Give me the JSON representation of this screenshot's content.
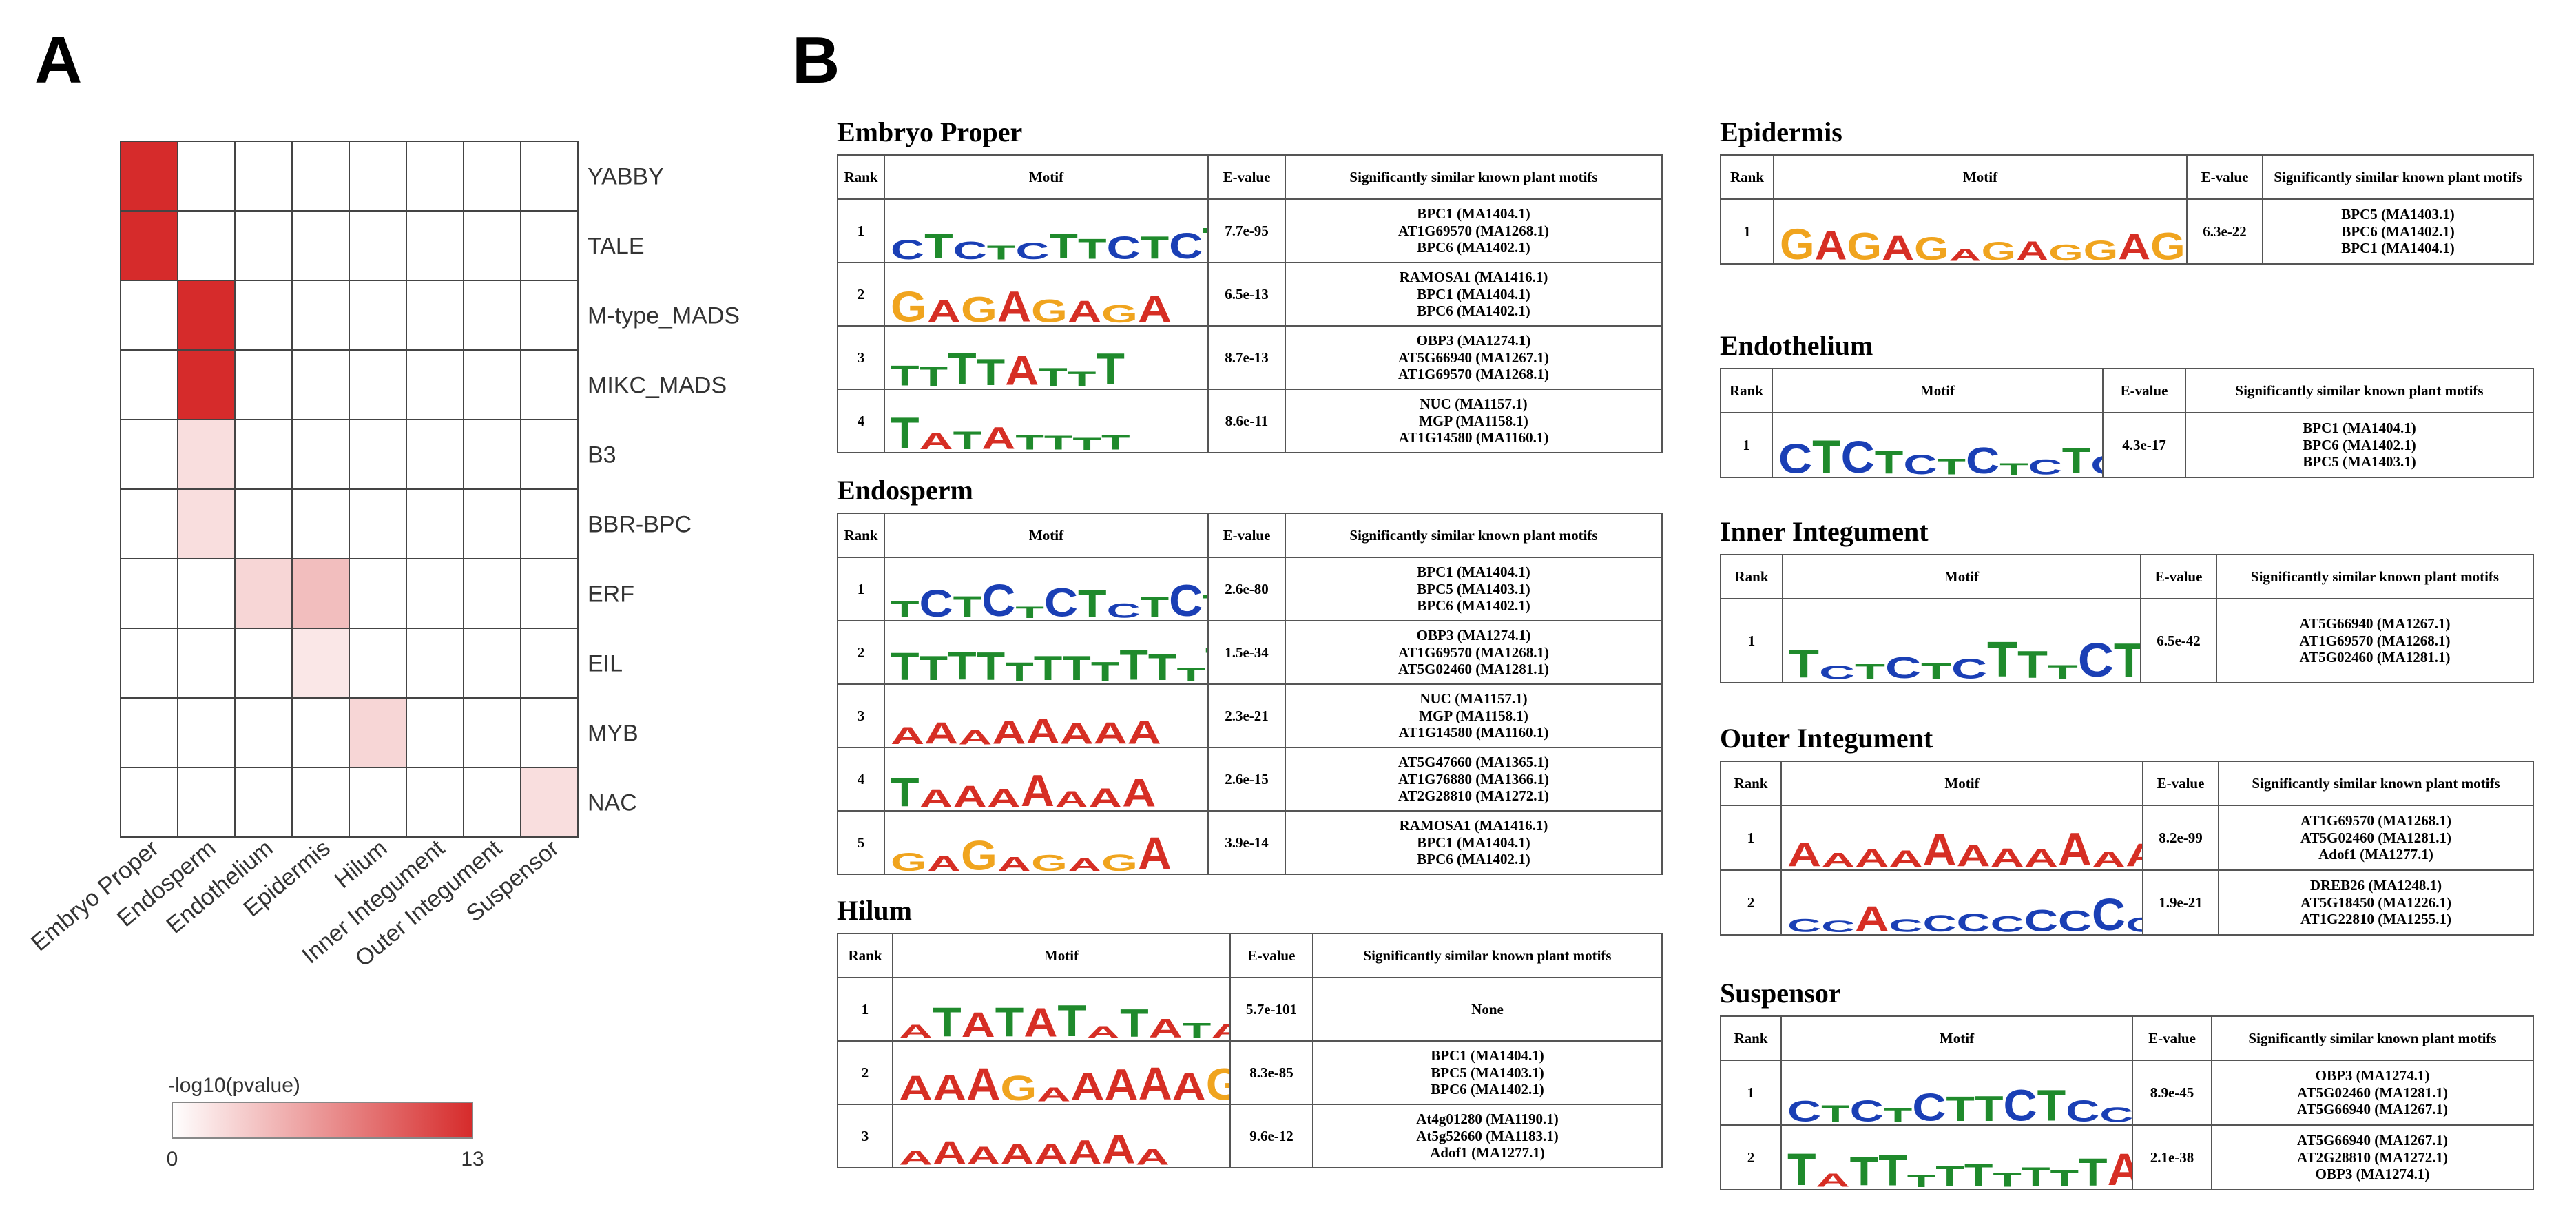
{
  "panels": {
    "a": "A",
    "b": "B"
  },
  "heatmap": {
    "rows": [
      "YABBY",
      "TALE",
      "M-type_MADS",
      "MIKC_MADS",
      "B3",
      "BBR-BPC",
      "ERF",
      "EIL",
      "MYB",
      "NAC"
    ],
    "cols": [
      "Embryo Proper",
      "Endosperm",
      "Endothelium",
      "Epidermis",
      "Hilum",
      "Inner Integument",
      "Outer Integument",
      "Suspensor"
    ],
    "values": [
      [
        13,
        0,
        0,
        0,
        0,
        0,
        0,
        0
      ],
      [
        13,
        0,
        0,
        0,
        0,
        0,
        0,
        0
      ],
      [
        0,
        13,
        0,
        0,
        0,
        0,
        0,
        0
      ],
      [
        0,
        13,
        0,
        0,
        0,
        0,
        0,
        0
      ],
      [
        0,
        2,
        0,
        0,
        0,
        0,
        0,
        0
      ],
      [
        0,
        2,
        0,
        0,
        0,
        0,
        0,
        0
      ],
      [
        0,
        0,
        2.5,
        4,
        0,
        0,
        0,
        0
      ],
      [
        0,
        0,
        0,
        1.5,
        0,
        0,
        0,
        0
      ],
      [
        0,
        0,
        0,
        0,
        2.5,
        0,
        0,
        0
      ],
      [
        0,
        0,
        0,
        0,
        0,
        0,
        0,
        2
      ]
    ],
    "legend": {
      "title": "-log10(pvalue)",
      "min": "0",
      "max": "13",
      "low_color": "#ffffff",
      "high_color": "#d62b2b"
    }
  },
  "table_headers": {
    "rank": "Rank",
    "motif": "Motif",
    "evalue": "E-value",
    "similar": "Significantly similar known  plant motifs"
  },
  "colors": {
    "A": "#d62e24",
    "C": "#1a3fb5",
    "G": "#f0a41e",
    "T": "#1f8a2c"
  },
  "sections": {
    "embryo": {
      "title": "Embryo Proper",
      "rows": [
        {
          "rank": "1",
          "logo": "CTCTCTTCTCTCTCCTCTCTC",
          "evalue": "7.7e-95",
          "similar": [
            "BPC1 (MA1404.1)",
            "AT1G69570 (MA1268.1)",
            "BPC6 (MA1402.1)"
          ]
        },
        {
          "rank": "2",
          "logo": "GAGAGAGA",
          "evalue": "6.5e-13",
          "similar": [
            "RAMOSA1 (MA1416.1)",
            "BPC1 (MA1404.1)",
            "BPC6 (MA1402.1)"
          ]
        },
        {
          "rank": "3",
          "logo": "TTTTATTT",
          "evalue": "8.7e-13",
          "similar": [
            "OBP3 (MA1274.1)",
            "AT5G66940 (MA1267.1)",
            "AT1G69570 (MA1268.1)"
          ]
        },
        {
          "rank": "4",
          "logo": "TATATTTT",
          "evalue": "8.6e-11",
          "similar": [
            "NUC (MA1157.1)",
            "MGP (MA1158.1)",
            "AT1G14580 (MA1160.1)"
          ]
        }
      ]
    },
    "endosperm": {
      "title": "Endosperm",
      "rows": [
        {
          "rank": "1",
          "logo": "TCTCTCTCTCTCCTCTCTC",
          "evalue": "2.6e-80",
          "similar": [
            "BPC1 (MA1404.1)",
            "BPC5 (MA1403.1)",
            "BPC6 (MA1402.1)"
          ]
        },
        {
          "rank": "2",
          "logo": "TTTTTTTTTTTTTTTTTT",
          "evalue": "1.5e-34",
          "similar": [
            "OBP3 (MA1274.1)",
            "AT1G69570 (MA1268.1)",
            "AT5G02460 (MA1281.1)"
          ]
        },
        {
          "rank": "3",
          "logo": "AAAAAAAA",
          "evalue": "2.3e-21",
          "similar": [
            "NUC (MA1157.1)",
            "MGP (MA1158.1)",
            "AT1G14580 (MA1160.1)"
          ]
        },
        {
          "rank": "4",
          "logo": "TAAAAAAA",
          "evalue": "2.6e-15",
          "similar": [
            "AT5G47660 (MA1365.1)",
            "AT1G76880 (MA1366.1)",
            "AT2G28810 (MA1272.1)"
          ]
        },
        {
          "rank": "5",
          "logo": "GAGAGAGA",
          "evalue": "3.9e-14",
          "similar": [
            "RAMOSA1 (MA1416.1)",
            "BPC1 (MA1404.1)",
            "BPC6 (MA1402.1)"
          ]
        }
      ]
    },
    "hilum": {
      "title": "Hilum",
      "rows": [
        {
          "rank": "1",
          "logo": "ATATATATATATATATATATATATATAT",
          "evalue": "5.7e-101",
          "similar": [
            "None"
          ]
        },
        {
          "rank": "2",
          "logo": "AAAGAAAAAGAGAGAGAAGAGA",
          "evalue": "8.3e-85",
          "similar": [
            "BPC1 (MA1404.1)",
            "BPC5 (MA1403.1)",
            "BPC6 (MA1402.1)"
          ]
        },
        {
          "rank": "3",
          "logo": "AAAAAAAA",
          "evalue": "9.6e-12",
          "similar": [
            "At4g01280 (MA1190.1)",
            "At5g52660 (MA1183.1)",
            "Adof1 (MA1277.1)"
          ]
        }
      ]
    },
    "epidermis": {
      "title": "Epidermis",
      "rows": [
        {
          "rank": "1",
          "logo": "GAGAGAGAGGAGAGAGGAGGAG",
          "evalue": "6.3e-22",
          "similar": [
            "BPC5 (MA1403.1)",
            "BPC6 (MA1402.1)",
            "BPC1 (MA1404.1)"
          ]
        }
      ]
    },
    "endothelium": {
      "title": "Endothelium",
      "rows": [
        {
          "rank": "1",
          "logo": "CTCTCTCTCTCTCTC",
          "evalue": "4.3e-17",
          "similar": [
            "BPC1 (MA1404.1)",
            "BPC6 (MA1402.1)",
            "BPC5 (MA1403.1)"
          ]
        }
      ]
    },
    "inner": {
      "title": "Inner Integument",
      "rows": [
        {
          "rank": "1",
          "logo": "TCTCTCTTTCTCCTTCTCTTC",
          "evalue": "6.5e-42",
          "similar": [
            "AT5G66940 (MA1267.1)",
            "AT1G69570 (MA1268.1)",
            "AT5G02460 (MA1281.1)"
          ]
        }
      ]
    },
    "outer": {
      "title": "Outer Integument",
      "rows": [
        {
          "rank": "1",
          "logo": "AAAAAAAAAAAGAAAAAA",
          "evalue": "8.2e-99",
          "similar": [
            "AT1G69570 (MA1268.1)",
            "AT5G02460 (MA1281.1)",
            "Adof1 (MA1277.1)"
          ]
        },
        {
          "rank": "2",
          "logo": "CCACCCCCCCCCA",
          "evalue": "1.9e-21",
          "similar": [
            "DREB26 (MA1248.1)",
            "AT5G18450 (MA1226.1)",
            "AT1G22810 (MA1255.1)"
          ]
        }
      ]
    },
    "suspensor": {
      "title": "Suspensor",
      "rows": [
        {
          "rank": "1",
          "logo": "CTCTCTTCTCCTTCTT",
          "evalue": "8.9e-45",
          "similar": [
            "OBP3 (MA1274.1)",
            "AT5G02460 (MA1281.1)",
            "AT5G66940 (MA1267.1)"
          ]
        },
        {
          "rank": "2",
          "logo": "TATTTTTTTTTATTTATTT",
          "evalue": "2.1e-38",
          "similar": [
            "AT5G66940 (MA1267.1)",
            "AT2G28810 (MA1272.1)",
            "OBP3 (MA1274.1)"
          ]
        }
      ]
    }
  }
}
